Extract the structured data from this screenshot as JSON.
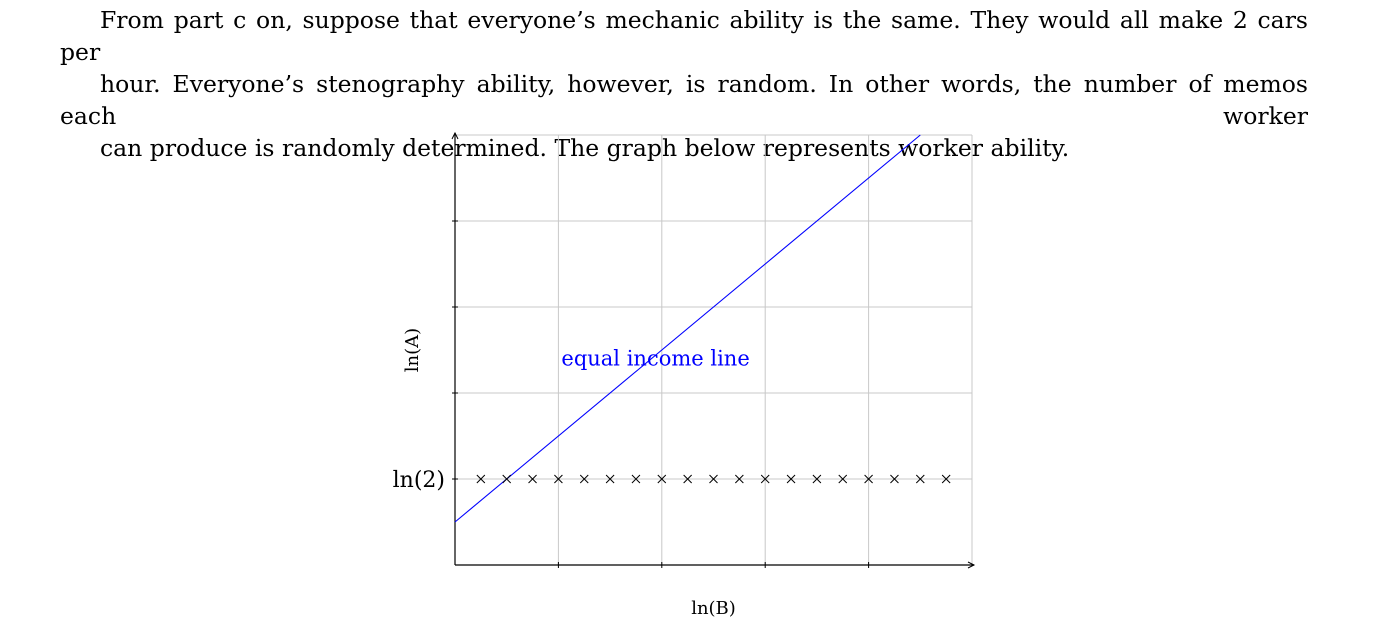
{
  "paragraph": {
    "lines": [
      "From part c on, suppose that everyone’s mechanic ability is the same.  They would all make 2 cars per",
      "hour.  Everyone’s stenography ability, however, is random.  In other words, the number of memos each worker",
      "can produce is randomly determined.  The graph below represents worker ability."
    ]
  },
  "chart_data": {
    "type": "scatter",
    "xlabel": "ln(B)",
    "ylabel": "ln(A)",
    "xlim": [
      0,
      5
    ],
    "ylim": [
      0,
      5
    ],
    "grid": true,
    "yticks": [
      {
        "value": 1,
        "label": "ln(2)"
      }
    ],
    "series": [
      {
        "marker": "x",
        "color": "#000000",
        "x": [
          0.25,
          0.5,
          0.75,
          1.0,
          1.25,
          1.5,
          1.75,
          2.0,
          2.25,
          2.5,
          2.75,
          3.0,
          3.25,
          3.5,
          3.75,
          4.0,
          4.25,
          4.5,
          4.75
        ],
        "y": [
          1,
          1,
          1,
          1,
          1,
          1,
          1,
          1,
          1,
          1,
          1,
          1,
          1,
          1,
          1,
          1,
          1,
          1,
          1
        ]
      }
    ],
    "lines": [
      {
        "label": "equal income line",
        "color": "#0000ff",
        "slope": 1,
        "intercept": 0.5,
        "label_at": [
          1.0,
          2.4
        ]
      }
    ]
  }
}
